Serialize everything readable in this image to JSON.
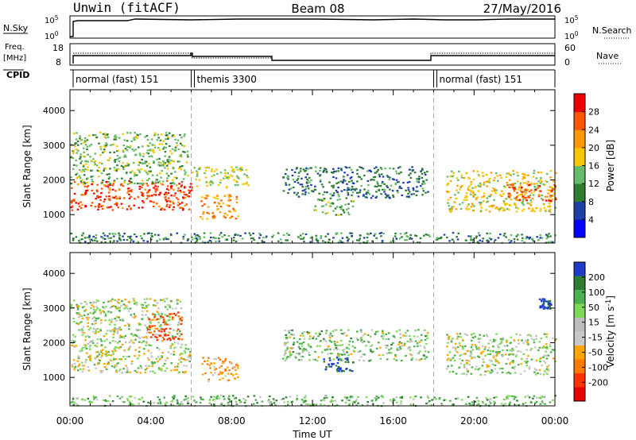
{
  "header": {
    "station": "Unwin (fitACF)",
    "beam": "Beam 08",
    "date": "27/May/2016"
  },
  "top_panels": {
    "nsky_label": "N.Sky",
    "nsky_ticks": [
      "10^5",
      "10^0"
    ],
    "nsky_right_ticks": [
      "10^5",
      "10^0"
    ],
    "nsearch_label": "N.Search",
    "freq_label_1": "Freq.",
    "freq_label_2": "[MHz]",
    "freq_ticks": [
      "18",
      "8"
    ],
    "nave_ticks": [
      "60",
      "0"
    ],
    "nave_label": "Nave",
    "cpid_label": "CPID"
  },
  "cpid_segments": [
    {
      "label": "normal (fast) 151",
      "start_hour": 0,
      "end_hour": 6
    },
    {
      "label": "themis 3300",
      "start_hour": 6,
      "end_hour": 18
    },
    {
      "label": "normal (fast) 151",
      "start_hour": 18,
      "end_hour": 24
    }
  ],
  "colors": {
    "power_scale": [
      "#0000ff",
      "#1e3fa8",
      "#2e7d32",
      "#66bb6a",
      "#f7c600",
      "#ff9900",
      "#ff5500",
      "#ee0000"
    ],
    "velocity_scale": [
      "#1f3cc8",
      "#2e7d32",
      "#4caf50",
      "#7ed957",
      "#bdbdbd",
      "#c8c8c8",
      "#ffa500",
      "#ff7a00",
      "#ff3300",
      "#e60000"
    ]
  },
  "chart_data": [
    {
      "type": "heatmap",
      "name": "power",
      "ylabel": "Slant Range [km]",
      "yticks": [
        "1000",
        "2000",
        "3000",
        "4000"
      ],
      "ylim": [
        180,
        4600
      ],
      "xlim": [
        0,
        24
      ],
      "colorbar_label": "Power [dB]",
      "colorbar_ticks": [
        "4",
        "8",
        "12",
        "16",
        "20",
        "24",
        "28"
      ],
      "colorbar_range": [
        0,
        32
      ],
      "regions": [
        {
          "t0": 0.0,
          "t1": 6.0,
          "r0": 1150,
          "r1": 2000,
          "level": 27
        },
        {
          "t0": 0.0,
          "t1": 5.8,
          "r0": 1900,
          "r1": 3400,
          "level": 14
        },
        {
          "t0": 6.4,
          "t1": 8.3,
          "r0": 900,
          "r1": 1600,
          "level": 22
        },
        {
          "t0": 6.0,
          "t1": 8.8,
          "r0": 1800,
          "r1": 2400,
          "level": 16
        },
        {
          "t0": 10.5,
          "t1": 17.7,
          "r0": 1500,
          "r1": 2400,
          "level": 9
        },
        {
          "t0": 12.0,
          "t1": 14.0,
          "r0": 1000,
          "r1": 1500,
          "level": 13
        },
        {
          "t0": 18.6,
          "t1": 24.0,
          "r0": 1100,
          "r1": 2300,
          "level": 18
        },
        {
          "t0": 21.6,
          "t1": 24.0,
          "r0": 1400,
          "r1": 1900,
          "level": 26
        },
        {
          "t0": 0.0,
          "t1": 24.0,
          "r0": 200,
          "r1": 500,
          "level": 10
        }
      ]
    },
    {
      "type": "heatmap",
      "name": "velocity",
      "ylabel": "Slant Range [km]",
      "yticks": [
        "1000",
        "2000",
        "3000",
        "4000"
      ],
      "ylim": [
        180,
        4600
      ],
      "xlim": [
        0,
        24
      ],
      "xticks": [
        "00:00",
        "04:00",
        "08:00",
        "12:00",
        "16:00",
        "20:00",
        "00:00"
      ],
      "xlabel": "Time UT",
      "colorbar_label": "Velocity [m s^-1]",
      "colorbar_ticks": [
        "200",
        "100",
        "50",
        "15",
        "-15",
        "-50",
        "-100",
        "-200"
      ],
      "colorbar_range": [
        -250,
        250
      ],
      "regions": [
        {
          "t0": 0.0,
          "t1": 6.0,
          "r0": 1150,
          "r1": 2000,
          "level": -5
        },
        {
          "t0": 0.0,
          "t1": 5.5,
          "r0": 2000,
          "r1": 3300,
          "level": 0
        },
        {
          "t0": 3.8,
          "t1": 5.5,
          "r0": 2100,
          "r1": 2900,
          "level": -180
        },
        {
          "t0": 6.5,
          "t1": 8.3,
          "r0": 900,
          "r1": 1600,
          "level": -70
        },
        {
          "t0": 10.5,
          "t1": 17.7,
          "r0": 1500,
          "r1": 2400,
          "level": 20
        },
        {
          "t0": 12.5,
          "t1": 14.0,
          "r0": 1200,
          "r1": 1600,
          "level": 180
        },
        {
          "t0": 18.6,
          "t1": 24.0,
          "r0": 1100,
          "r1": 2300,
          "level": 5
        },
        {
          "t0": 0.0,
          "t1": 24.0,
          "r0": 200,
          "r1": 500,
          "level": 40
        },
        {
          "t0": 23.2,
          "t1": 23.8,
          "r0": 3000,
          "r1": 3300,
          "level": 200
        }
      ]
    }
  ]
}
